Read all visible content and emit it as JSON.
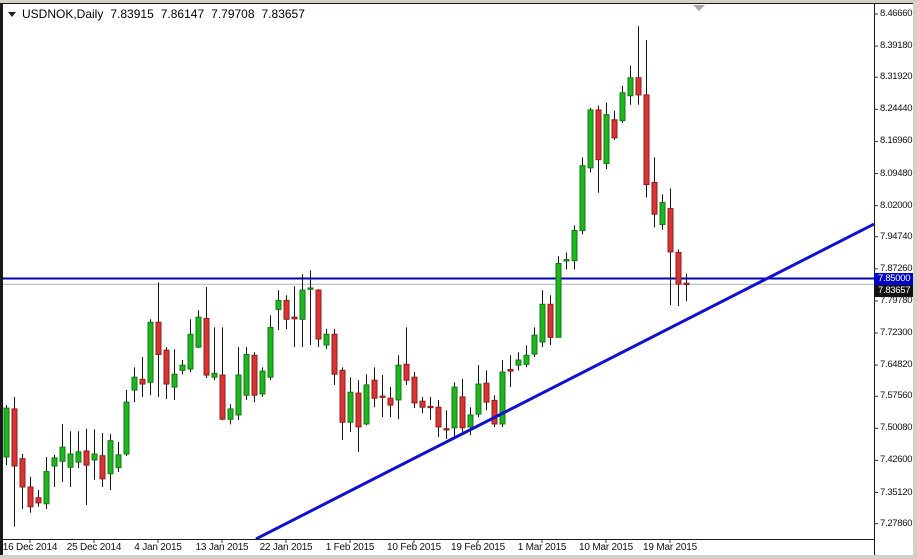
{
  "window": {
    "symbol": "USDNOK,Daily",
    "ohlc": {
      "open": "7.83915",
      "high": "7.86147",
      "low": "7.79708",
      "close": "7.83657"
    }
  },
  "chart_data": {
    "type": "candlestick",
    "title": "USDNOK,Daily",
    "symbol": "USDNOK",
    "timeframe": "Daily",
    "y_axis": {
      "labels": [
        "8.46660",
        "8.39180",
        "8.31920",
        "8.24440",
        "8.16960",
        "8.09480",
        "8.02000",
        "7.94740",
        "7.87260",
        "7.79780",
        "7.72300",
        "7.64820",
        "7.57560",
        "7.50080",
        "7.42600",
        "7.35120",
        "7.27860"
      ],
      "price_top": 8.4666,
      "price_bottom": 7.2786,
      "grid": "off"
    },
    "x_axis": {
      "labels": [
        "16 Dec 2014",
        "25 Dec 2014",
        "4 Jan 2015",
        "13 Jan 2015",
        "22 Jan 2015",
        "1 Feb 2015",
        "10 Feb 2015",
        "19 Feb 2015",
        "1 Mar 2015",
        "10 Mar 2015",
        "19 Mar 2015"
      ],
      "bar_indices": [
        3,
        11,
        19,
        27,
        35,
        43,
        51,
        59,
        67,
        75,
        83
      ]
    },
    "candles": [
      [
        7.434,
        7.555,
        7.415,
        7.548
      ],
      [
        7.546,
        7.574,
        7.272,
        7.413
      ],
      [
        7.43,
        7.441,
        7.313,
        7.364
      ],
      [
        7.364,
        7.388,
        7.304,
        7.318
      ],
      [
        7.339,
        7.357,
        7.318,
        7.327
      ],
      [
        7.325,
        7.434,
        7.313,
        7.4
      ],
      [
        7.413,
        7.439,
        7.364,
        7.432
      ],
      [
        7.424,
        7.511,
        7.376,
        7.457
      ],
      [
        7.41,
        7.494,
        7.364,
        7.441
      ],
      [
        7.422,
        7.494,
        7.408,
        7.446
      ],
      [
        7.448,
        7.5,
        7.322,
        7.415
      ],
      [
        7.427,
        7.498,
        7.381,
        7.441
      ],
      [
        7.437,
        7.49,
        7.364,
        7.383
      ],
      [
        7.395,
        7.488,
        7.357,
        7.472
      ],
      [
        7.409,
        7.469,
        7.399,
        7.439
      ],
      [
        7.441,
        7.59,
        7.436,
        7.562
      ],
      [
        7.59,
        7.643,
        7.562,
        7.62
      ],
      [
        7.615,
        7.667,
        7.574,
        7.604
      ],
      [
        7.608,
        7.755,
        7.578,
        7.748
      ],
      [
        7.748,
        7.841,
        7.574,
        7.673
      ],
      [
        7.683,
        7.69,
        7.569,
        7.604
      ],
      [
        7.597,
        7.685,
        7.567,
        7.627
      ],
      [
        7.636,
        7.66,
        7.627,
        7.648
      ],
      [
        7.639,
        7.755,
        7.632,
        7.72
      ],
      [
        7.69,
        7.776,
        7.688,
        7.76
      ],
      [
        7.757,
        7.83,
        7.618,
        7.625
      ],
      [
        7.62,
        7.736,
        7.613,
        7.629
      ],
      [
        7.625,
        7.736,
        7.52,
        7.522
      ],
      [
        7.522,
        7.557,
        7.51,
        7.546
      ],
      [
        7.532,
        7.69,
        7.52,
        7.625
      ],
      [
        7.578,
        7.69,
        7.567,
        7.673
      ],
      [
        7.671,
        7.678,
        7.562,
        7.578
      ],
      [
        7.581,
        7.643,
        7.574,
        7.634
      ],
      [
        7.62,
        7.764,
        7.613,
        7.736
      ],
      [
        7.778,
        7.823,
        7.73,
        7.799
      ],
      [
        7.799,
        7.811,
        7.732,
        7.755
      ],
      [
        7.76,
        7.832,
        7.69,
        7.756
      ],
      [
        7.755,
        7.86,
        7.69,
        7.823
      ],
      [
        7.825,
        7.869,
        7.695,
        7.828
      ],
      [
        7.823,
        7.825,
        7.69,
        7.709
      ],
      [
        7.695,
        7.732,
        7.685,
        7.72
      ],
      [
        7.72,
        7.732,
        7.602,
        7.627
      ],
      [
        7.636,
        7.643,
        7.474,
        7.515
      ],
      [
        7.515,
        7.62,
        7.492,
        7.585
      ],
      [
        7.583,
        7.613,
        7.446,
        7.504
      ],
      [
        7.511,
        7.627,
        7.508,
        7.602
      ],
      [
        7.613,
        7.643,
        7.55,
        7.571
      ],
      [
        7.576,
        7.625,
        7.527,
        7.574
      ],
      [
        7.571,
        7.597,
        7.527,
        7.555
      ],
      [
        7.567,
        7.671,
        7.522,
        7.648
      ],
      [
        7.65,
        7.736,
        7.602,
        7.613
      ],
      [
        7.62,
        7.632,
        7.548,
        7.56
      ],
      [
        7.564,
        7.574,
        7.536,
        7.55
      ],
      [
        7.552,
        7.574,
        7.52,
        7.55
      ],
      [
        7.55,
        7.567,
        7.481,
        7.504
      ],
      [
        7.5,
        7.543,
        7.476,
        7.499
      ],
      [
        7.502,
        7.608,
        7.476,
        7.597
      ],
      [
        7.574,
        7.616,
        7.488,
        7.502
      ],
      [
        7.504,
        7.55,
        7.485,
        7.532
      ],
      [
        7.534,
        7.648,
        7.527,
        7.604
      ],
      [
        7.606,
        7.636,
        7.543,
        7.562
      ],
      [
        7.566,
        7.578,
        7.504,
        7.511
      ],
      [
        7.511,
        7.66,
        7.504,
        7.632
      ],
      [
        7.638,
        7.671,
        7.597,
        7.634
      ],
      [
        7.648,
        7.678,
        7.636,
        7.66
      ],
      [
        7.65,
        7.694,
        7.643,
        7.671
      ],
      [
        7.674,
        7.736,
        7.667,
        7.718
      ],
      [
        7.702,
        7.823,
        7.69,
        7.79
      ],
      [
        7.79,
        7.811,
        7.695,
        7.713
      ],
      [
        7.713,
        7.902,
        7.713,
        7.885
      ],
      [
        7.892,
        7.911,
        7.871,
        7.894
      ],
      [
        7.892,
        7.974,
        7.871,
        7.962
      ],
      [
        7.962,
        8.132,
        7.953,
        8.113
      ],
      [
        8.108,
        8.248,
        8.097,
        8.243
      ],
      [
        8.243,
        8.253,
        8.05,
        8.127
      ],
      [
        8.118,
        8.26,
        8.105,
        8.232
      ],
      [
        8.22,
        8.241,
        8.173,
        8.178
      ],
      [
        8.218,
        8.299,
        8.213,
        8.283
      ],
      [
        8.276,
        8.346,
        8.255,
        8.318
      ],
      [
        8.318,
        8.439,
        8.255,
        8.278
      ],
      [
        8.278,
        8.406,
        8.039,
        8.069
      ],
      [
        8.074,
        8.132,
        7.969,
        8.0
      ],
      [
        7.976,
        8.046,
        7.964,
        8.027
      ],
      [
        8.013,
        8.06,
        7.788,
        7.912
      ],
      [
        7.911,
        7.918,
        7.786,
        7.837
      ],
      [
        7.83915,
        7.86147,
        7.79708,
        7.83657
      ]
    ],
    "overlays": {
      "level_line_price": 7.85,
      "level_label": "7.85000",
      "bid_line_price": 7.83657,
      "bid_label": "7.83657",
      "trendline": {
        "bar_start": 31.25,
        "price_start": 7.243,
        "bar_end": 108.5,
        "price_end": 7.977
      }
    },
    "legend_position": "none"
  },
  "colors": {
    "up_body": "#21b421",
    "up_border": "#0f7d0f",
    "down_body": "#d93434",
    "down_border": "#8f1d1d",
    "wick": "#141414",
    "level_line": "#0000b8",
    "trend_line": "#1111cc",
    "bid_line": "#b3b3b3",
    "level_label_bg": "#0000c8",
    "bid_label_bg": "#121212",
    "axis_text": "#111111"
  }
}
